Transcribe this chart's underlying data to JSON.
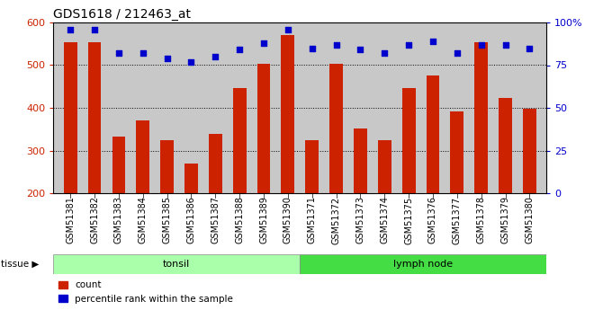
{
  "title": "GDS1618 / 212463_at",
  "categories": [
    "GSM51381",
    "GSM51382",
    "GSM51383",
    "GSM51384",
    "GSM51385",
    "GSM51386",
    "GSM51387",
    "GSM51388",
    "GSM51389",
    "GSM51390",
    "GSM51371",
    "GSM51372",
    "GSM51373",
    "GSM51374",
    "GSM51375",
    "GSM51376",
    "GSM51377",
    "GSM51378",
    "GSM51379",
    "GSM51380"
  ],
  "counts": [
    553,
    553,
    333,
    370,
    325,
    270,
    338,
    447,
    503,
    570,
    325,
    503,
    352,
    325,
    447,
    475,
    392,
    553,
    423,
    398
  ],
  "percentiles": [
    96,
    96,
    82,
    82,
    79,
    77,
    80,
    84,
    88,
    96,
    85,
    87,
    84,
    82,
    87,
    89,
    82,
    87,
    87,
    85
  ],
  "tonsil_count": 10,
  "lymph_count": 10,
  "tissue_labels": [
    "tonsil",
    "lymph node"
  ],
  "tonsil_color": "#AAFFAA",
  "lymph_color": "#44DD44",
  "bar_color": "#CC2200",
  "point_color": "#0000CC",
  "ylim_left": [
    200,
    600
  ],
  "ylim_right": [
    0,
    100
  ],
  "yticks_left": [
    200,
    300,
    400,
    500,
    600
  ],
  "yticks_right": [
    0,
    25,
    50,
    75,
    100
  ],
  "plot_bg_color": "#C8C8C8",
  "tick_area_bg": "#C8C8C8",
  "legend_count_label": "count",
  "legend_pct_label": "percentile rank within the sample",
  "tissue_label": "tissue"
}
